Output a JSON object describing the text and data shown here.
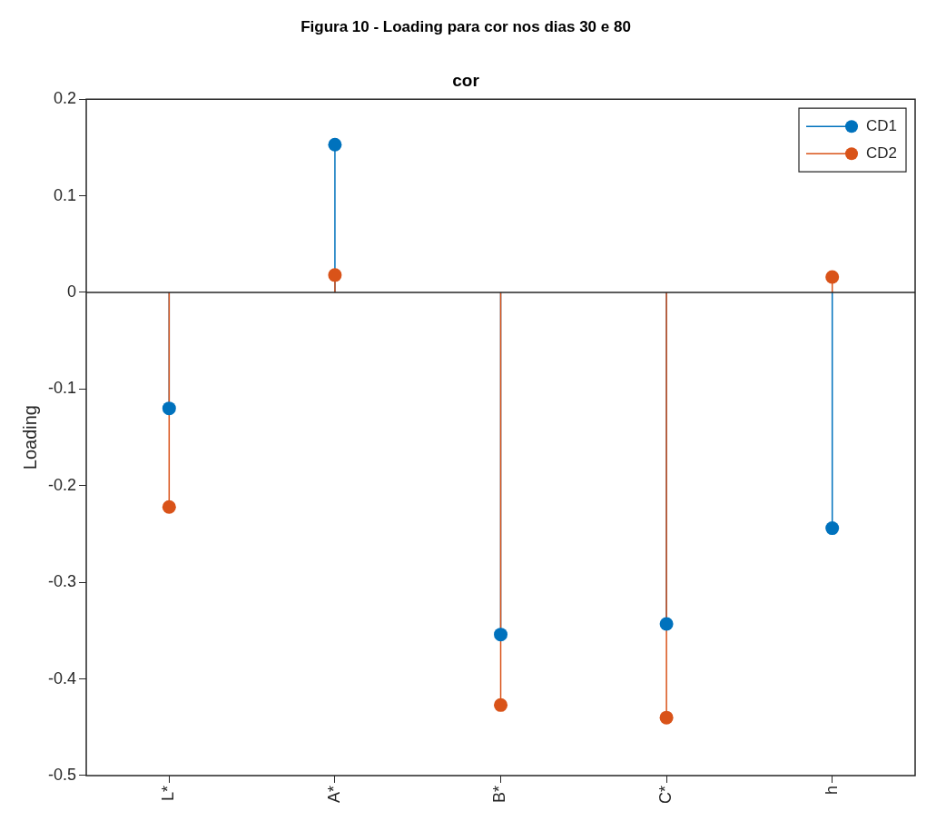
{
  "chart_data": {
    "type": "lollipop",
    "title": "Figura 10 - Loading para cor nos dias 30 e 80",
    "subtitle": "cor",
    "ylabel": "Loading",
    "categories": [
      "L*",
      "A*",
      "B*",
      "C*",
      "h"
    ],
    "series": [
      {
        "name": "CD1",
        "color": "#0072bd",
        "values": [
          -0.12,
          0.153,
          -0.354,
          -0.343,
          -0.244
        ]
      },
      {
        "name": "CD2",
        "color": "#d95319",
        "values": [
          -0.222,
          0.018,
          -0.427,
          -0.44,
          0.016
        ]
      }
    ],
    "ylim": [
      -0.5,
      0.2
    ],
    "yticks": [
      -0.5,
      -0.4,
      -0.3,
      -0.2,
      -0.1,
      0,
      0.1,
      0.2
    ],
    "ref_lines": [
      {
        "axis": "y",
        "value": 0,
        "color": "#262626"
      }
    ],
    "grid": false,
    "legend": "top right",
    "marker": "circle"
  }
}
